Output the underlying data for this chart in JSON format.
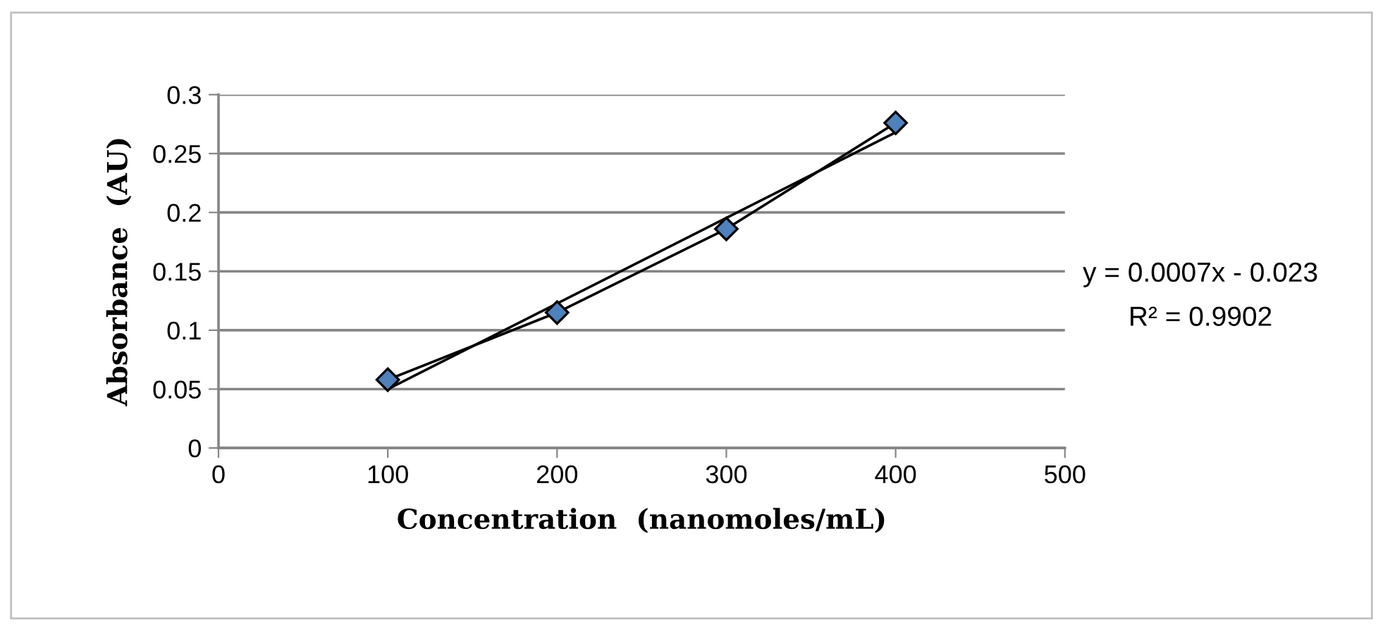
{
  "chart_data": {
    "type": "line",
    "xlabel": "Concentration  (nanomoles/mL)",
    "ylabel": "Absorbance  (AU)",
    "x": [
      100,
      200,
      300,
      400
    ],
    "series": [
      {
        "color": "#4f81bd",
        "values": [
          0.058,
          0.115,
          0.186,
          0.276
        ],
        "marker": "diamond"
      },
      {
        "color": "#000000",
        "x": [
          100,
          400
        ],
        "values": [
          0.05,
          0.268
        ],
        "marker": "none"
      }
    ],
    "annotations": [
      "y = 0.0007x - 0.023",
      "R² = 0.9902"
    ],
    "xlim": [
      0,
      500
    ],
    "xticks": [
      0,
      100,
      200,
      300,
      400,
      500
    ],
    "ylim": [
      0,
      0.3
    ],
    "yticks": [
      0,
      0.05,
      0.1,
      0.15,
      0.2,
      0.25,
      0.3
    ],
    "grid": "y",
    "legend": false
  }
}
